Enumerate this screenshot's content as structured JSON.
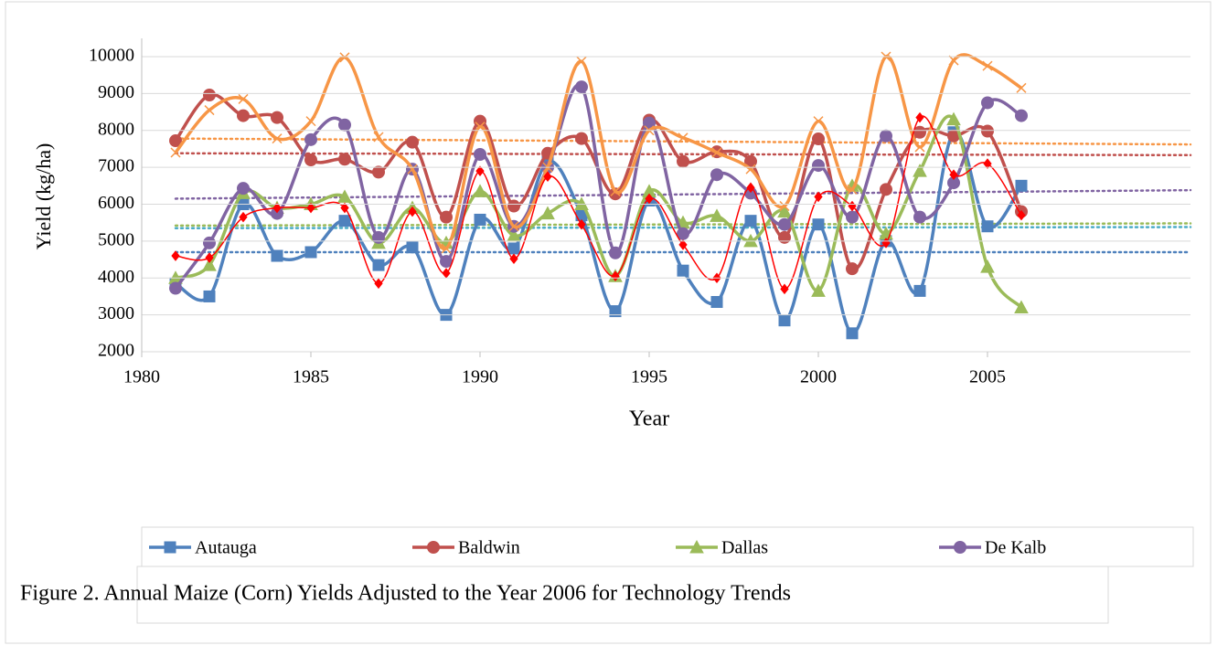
{
  "chart_data": {
    "type": "line",
    "caption": "Figure 2. Annual Maize (Corn) Yields Adjusted to the Year 2006 for Technology Trends",
    "x_label": "Year",
    "y_label": "Yield (kg/ha)",
    "x": [
      1981,
      1982,
      1983,
      1984,
      1985,
      1986,
      1987,
      1988,
      1989,
      1990,
      1991,
      1992,
      1993,
      1994,
      1995,
      1996,
      1997,
      1998,
      1999,
      2000,
      2001,
      2002,
      2003,
      2004,
      2005,
      2006
    ],
    "xlim": [
      1980,
      2011
    ],
    "xticks": [
      1980,
      1985,
      1990,
      1995,
      2000,
      2005
    ],
    "ylim": [
      2000,
      10000
    ],
    "yticks": [
      2000,
      3000,
      4000,
      5000,
      6000,
      7000,
      8000,
      9000,
      10000
    ],
    "smooth": true,
    "series": [
      {
        "name": "Autauga",
        "color": "#4f81bd",
        "marker": "square",
        "values": [
          3850,
          3500,
          6000,
          4600,
          4700,
          5550,
          4350,
          4830,
          3000,
          5580,
          4800,
          7150,
          5700,
          3100,
          6100,
          4200,
          3350,
          5550,
          2850,
          5450,
          2500,
          5000,
          3650,
          7950,
          5400,
          6500
        ],
        "trend": {
          "color": "#4f81bd",
          "x": [
            1981,
            2011
          ],
          "values": [
            4700,
            4700
          ]
        }
      },
      {
        "name": "Baldwin",
        "color": "#c0504d",
        "marker": "circle",
        "values": [
          7720,
          8960,
          8400,
          8350,
          7200,
          7220,
          6870,
          7680,
          5650,
          8250,
          5950,
          7380,
          7780,
          6280,
          8280,
          7160,
          7420,
          7160,
          5100,
          7770,
          4250,
          6400,
          7950,
          7850,
          7980,
          5800
        ],
        "trend": {
          "color": "#c0504d",
          "x": [
            1981,
            2011
          ],
          "values": [
            7380,
            7330
          ]
        }
      },
      {
        "name": "Dallas",
        "color": "#9bbb59",
        "marker": "triangle",
        "values": [
          4000,
          4350,
          6300,
          5900,
          6000,
          6200,
          4950,
          5900,
          4950,
          6350,
          5150,
          5750,
          6000,
          4050,
          6350,
          5500,
          5680,
          5000,
          5800,
          3650,
          6500,
          5200,
          6900,
          8300,
          4300,
          3200
        ],
        "trend": {
          "color": "#9bbb59",
          "x": [
            1981,
            2011
          ],
          "values": [
            5420,
            5480
          ]
        }
      },
      {
        "name": "De Kalb",
        "color": "#8064a2",
        "marker": "circle",
        "values": [
          3720,
          4950,
          6430,
          5750,
          7750,
          8150,
          5100,
          6950,
          4450,
          7350,
          5400,
          7000,
          9180,
          4680,
          8200,
          5200,
          6800,
          6300,
          5450,
          7050,
          5650,
          7850,
          5650,
          6580,
          8750,
          8400
        ],
        "trend": {
          "color": "#8064a2",
          "x": [
            1981,
            2011
          ],
          "values": [
            6150,
            6380
          ]
        }
      },
      {
        "color": "#f79646",
        "marker": "x",
        "values": [
          7400,
          8550,
          8850,
          7780,
          8250,
          9980,
          7820,
          6950,
          4800,
          8100,
          5400,
          7000,
          9870,
          6350,
          8000,
          7800,
          7400,
          6950,
          5950,
          8250,
          6400,
          10000,
          7550,
          9900,
          9750,
          9150
        ],
        "trend": {
          "color": "#f79646",
          "x": [
            1981,
            2011
          ],
          "values": [
            7780,
            7620
          ]
        }
      },
      {
        "color": "#ff0000",
        "marker": "diamond",
        "values": [
          4600,
          4550,
          5650,
          5900,
          5900,
          5900,
          3850,
          5800,
          4130,
          6900,
          4520,
          6750,
          5450,
          4050,
          6150,
          4900,
          4000,
          6450,
          3700,
          6200,
          5950,
          4950,
          8350,
          6800,
          7100,
          5700
        ],
        "trend": {
          "color": "#4bacc6",
          "x": [
            1981,
            2011
          ],
          "values": [
            5350,
            5380
          ]
        }
      }
    ]
  }
}
